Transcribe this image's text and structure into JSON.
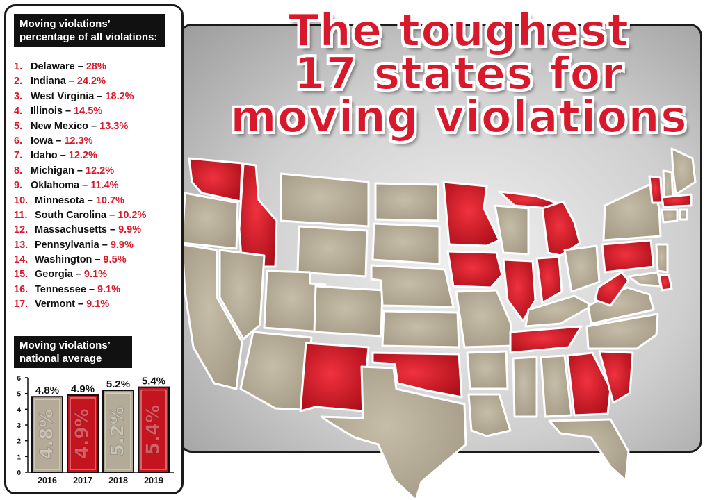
{
  "title": {
    "line1": "The toughest",
    "line2": "17 states for",
    "line3": "moving violations"
  },
  "ranking": {
    "heading_line1": "Moving violations’",
    "heading_line2": "percentage of all violations:",
    "items": [
      {
        "rank": "1.",
        "state": "Delaware",
        "pct": "28%"
      },
      {
        "rank": "2.",
        "state": "Indiana",
        "pct": "24.2%"
      },
      {
        "rank": "3.",
        "state": "West Virginia",
        "pct": "18.2%"
      },
      {
        "rank": "4.",
        "state": "Illinois",
        "pct": "14.5%"
      },
      {
        "rank": "5.",
        "state": "New Mexico",
        "pct": "13.3%"
      },
      {
        "rank": "6.",
        "state": "Iowa",
        "pct": "12.3%"
      },
      {
        "rank": "7.",
        "state": "Idaho",
        "pct": "12.2%"
      },
      {
        "rank": "8.",
        "state": "Michigan",
        "pct": "12.2%"
      },
      {
        "rank": "9.",
        "state": "Oklahoma",
        "pct": "11.4%"
      },
      {
        "rank": "10.",
        "state": "Minnesota",
        "pct": "10.7%"
      },
      {
        "rank": "11.",
        "state": "South Carolina",
        "pct": "10.2%"
      },
      {
        "rank": "12.",
        "state": "Massachusetts",
        "pct": "9.9%"
      },
      {
        "rank": "13.",
        "state": "Pennsylvania",
        "pct": "9.9%"
      },
      {
        "rank": "14.",
        "state": "Washington",
        "pct": "9.5%"
      },
      {
        "rank": "15.",
        "state": "Georgia",
        "pct": "9.1%"
      },
      {
        "rank": "16.",
        "state": "Tennessee",
        "pct": "9.1%"
      },
      {
        "rank": "17.",
        "state": "Vermont",
        "pct": "9.1%"
      }
    ],
    "dash": "–"
  },
  "average": {
    "heading_line1": "Moving violations’",
    "heading_line2": "national average"
  },
  "chart_data": {
    "type": "bar",
    "categories": [
      "2016",
      "2017",
      "2018",
      "2019"
    ],
    "values": [
      4.8,
      4.9,
      5.2,
      5.4
    ],
    "labels": [
      "4.8%",
      "4.9%",
      "5.2%",
      "5.4%"
    ],
    "yticks": [
      "0",
      "1",
      "2",
      "3",
      "4",
      "5",
      "6"
    ],
    "ylim": [
      0,
      6
    ],
    "bar_colors": [
      "#b3aa97",
      "#c4141f",
      "#b3aa97",
      "#c4141f"
    ]
  },
  "colors": {
    "highlight_red": "#d8192b",
    "state_tan": "#b3aa97",
    "state_outline": "#ffffff",
    "panel_gray": "#c8c8c8"
  }
}
